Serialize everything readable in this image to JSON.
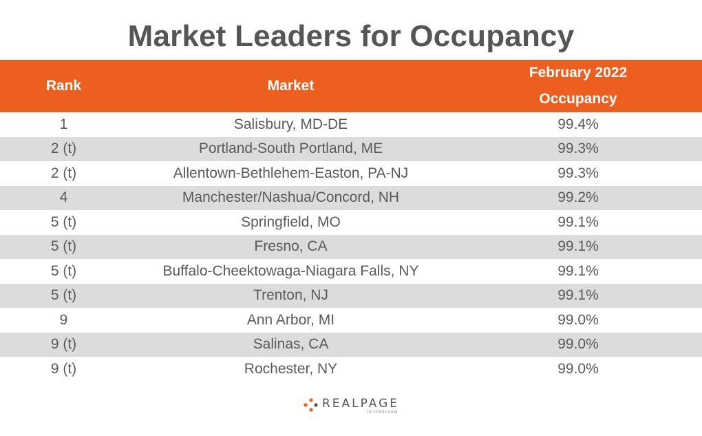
{
  "title": "Market Leaders for Occupancy",
  "chart_data": {
    "type": "table",
    "columns": [
      "Rank",
      "Market",
      "February 2022 Occupancy"
    ],
    "header": {
      "rank": "Rank",
      "market": "Market",
      "occupancy_line1": "February 2022",
      "occupancy_line2": "Occupancy"
    },
    "rows": [
      {
        "rank": "1",
        "market": "Salisbury, MD-DE",
        "occupancy": "99.4%"
      },
      {
        "rank": "2 (t)",
        "market": "Portland-South Portland, ME",
        "occupancy": "99.3%"
      },
      {
        "rank": "2 (t)",
        "market": "Allentown-Bethlehem-Easton, PA-NJ",
        "occupancy": "99.3%"
      },
      {
        "rank": "4",
        "market": "Manchester/Nashua/Concord, NH",
        "occupancy": "99.2%"
      },
      {
        "rank": "5 (t)",
        "market": "Springfield, MO",
        "occupancy": "99.1%"
      },
      {
        "rank": "5 (t)",
        "market": "Fresno, CA",
        "occupancy": "99.1%"
      },
      {
        "rank": "5 (t)",
        "market": "Buffalo-Cheektowaga-Niagara Falls, NY",
        "occupancy": "99.1%"
      },
      {
        "rank": "5 (t)",
        "market": "Trenton, NJ",
        "occupancy": "99.1%"
      },
      {
        "rank": "9",
        "market": "Ann Arbor, MI",
        "occupancy": "99.0%"
      },
      {
        "rank": "9 (t)",
        "market": "Salinas, CA",
        "occupancy": "99.0%"
      },
      {
        "rank": "9 (t)",
        "market": "Rochester, NY",
        "occupancy": "99.0%"
      }
    ]
  },
  "colors": {
    "header_bg": "#ec5f1e",
    "row_shade": "#dcdcdc",
    "text": "#5a5a5a",
    "title": "#555555"
  },
  "logo": {
    "name": "REALPAGE",
    "tagline": "OUTPERFORM",
    "icon": "realpage-dots-icon"
  }
}
